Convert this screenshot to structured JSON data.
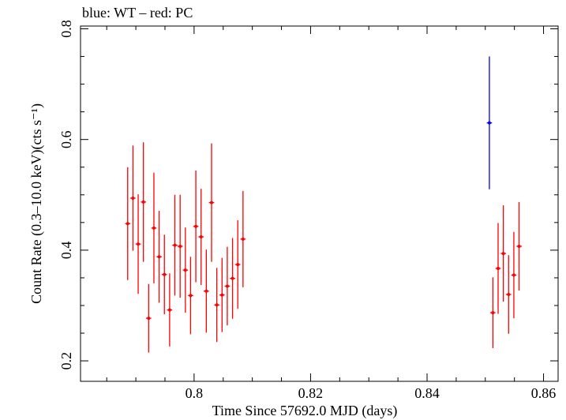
{
  "chart_data": {
    "type": "scatter",
    "title": "blue: WT – red: PC",
    "xlabel": "Time Since 57692.0 MJD (days)",
    "ylabel": "Count Rate (0.3–10.0 keV)(cts s⁻¹)",
    "xlim": [
      0.7805,
      0.8625
    ],
    "ylim": [
      0.163,
      0.805
    ],
    "x_ticks": [
      0.8,
      0.82,
      0.84,
      0.86
    ],
    "x_tick_labels": [
      "0.8",
      "0.82",
      "0.84",
      "0.86"
    ],
    "y_ticks": [
      0.2,
      0.4,
      0.6,
      0.8
    ],
    "y_tick_labels": [
      "0.2",
      "0.4",
      "0.6",
      "0.8"
    ],
    "grid": false,
    "series": [
      {
        "color": "#ff0000",
        "points": [
          {
            "x": 0.7886,
            "y": 0.448,
            "xerr": 0.00045,
            "yerr_lo": 0.102,
            "yerr_hi": 0.102
          },
          {
            "x": 0.7895,
            "y": 0.494,
            "xerr": 0.00045,
            "yerr_lo": 0.095,
            "yerr_hi": 0.095
          },
          {
            "x": 0.7904,
            "y": 0.411,
            "xerr": 0.00045,
            "yerr_lo": 0.09,
            "yerr_hi": 0.09
          },
          {
            "x": 0.7913,
            "y": 0.487,
            "xerr": 0.00045,
            "yerr_lo": 0.108,
            "yerr_hi": 0.108
          },
          {
            "x": 0.7922,
            "y": 0.277,
            "xerr": 0.00045,
            "yerr_lo": 0.062,
            "yerr_hi": 0.062
          },
          {
            "x": 0.7931,
            "y": 0.44,
            "xerr": 0.00045,
            "yerr_lo": 0.1,
            "yerr_hi": 0.1
          },
          {
            "x": 0.794,
            "y": 0.388,
            "xerr": 0.00045,
            "yerr_lo": 0.083,
            "yerr_hi": 0.083
          },
          {
            "x": 0.7949,
            "y": 0.356,
            "xerr": 0.00045,
            "yerr_lo": 0.072,
            "yerr_hi": 0.072
          },
          {
            "x": 0.7958,
            "y": 0.292,
            "xerr": 0.00045,
            "yerr_lo": 0.066,
            "yerr_hi": 0.066
          },
          {
            "x": 0.7967,
            "y": 0.409,
            "xerr": 0.00045,
            "yerr_lo": 0.091,
            "yerr_hi": 0.091
          },
          {
            "x": 0.7976,
            "y": 0.407,
            "xerr": 0.00045,
            "yerr_lo": 0.093,
            "yerr_hi": 0.093
          },
          {
            "x": 0.7985,
            "y": 0.364,
            "xerr": 0.00045,
            "yerr_lo": 0.077,
            "yerr_hi": 0.077
          },
          {
            "x": 0.7994,
            "y": 0.318,
            "xerr": 0.00045,
            "yerr_lo": 0.07,
            "yerr_hi": 0.07
          },
          {
            "x": 0.8003,
            "y": 0.443,
            "xerr": 0.00045,
            "yerr_lo": 0.101,
            "yerr_hi": 0.101
          },
          {
            "x": 0.8012,
            "y": 0.424,
            "xerr": 0.00045,
            "yerr_lo": 0.087,
            "yerr_hi": 0.087
          },
          {
            "x": 0.8021,
            "y": 0.326,
            "xerr": 0.00045,
            "yerr_lo": 0.075,
            "yerr_hi": 0.075
          },
          {
            "x": 0.803,
            "y": 0.486,
            "xerr": 0.00045,
            "yerr_lo": 0.107,
            "yerr_hi": 0.107
          },
          {
            "x": 0.8039,
            "y": 0.301,
            "xerr": 0.00045,
            "yerr_lo": 0.067,
            "yerr_hi": 0.067
          },
          {
            "x": 0.8048,
            "y": 0.319,
            "xerr": 0.00045,
            "yerr_lo": 0.067,
            "yerr_hi": 0.067
          },
          {
            "x": 0.8057,
            "y": 0.335,
            "xerr": 0.00045,
            "yerr_lo": 0.071,
            "yerr_hi": 0.071
          },
          {
            "x": 0.8066,
            "y": 0.349,
            "xerr": 0.00045,
            "yerr_lo": 0.073,
            "yerr_hi": 0.073
          },
          {
            "x": 0.8075,
            "y": 0.374,
            "xerr": 0.00045,
            "yerr_lo": 0.08,
            "yerr_hi": 0.08
          },
          {
            "x": 0.8084,
            "y": 0.42,
            "xerr": 0.00045,
            "yerr_lo": 0.087,
            "yerr_hi": 0.087
          },
          {
            "x": 0.8513,
            "y": 0.287,
            "xerr": 0.00045,
            "yerr_lo": 0.064,
            "yerr_hi": 0.064
          },
          {
            "x": 0.8522,
            "y": 0.367,
            "xerr": 0.00045,
            "yerr_lo": 0.082,
            "yerr_hi": 0.082
          },
          {
            "x": 0.8531,
            "y": 0.394,
            "xerr": 0.00045,
            "yerr_lo": 0.087,
            "yerr_hi": 0.087
          },
          {
            "x": 0.854,
            "y": 0.32,
            "xerr": 0.00045,
            "yerr_lo": 0.071,
            "yerr_hi": 0.071
          },
          {
            "x": 0.8549,
            "y": 0.355,
            "xerr": 0.00045,
            "yerr_lo": 0.078,
            "yerr_hi": 0.078
          },
          {
            "x": 0.8558,
            "y": 0.407,
            "xerr": 0.00045,
            "yerr_lo": 0.08,
            "yerr_hi": 0.08
          }
        ]
      },
      {
        "color": "#0000ff",
        "points": [
          {
            "x": 0.8507,
            "y": 0.63,
            "xerr": 0.00045,
            "yerr_lo": 0.12,
            "yerr_hi": 0.12
          }
        ]
      }
    ]
  }
}
